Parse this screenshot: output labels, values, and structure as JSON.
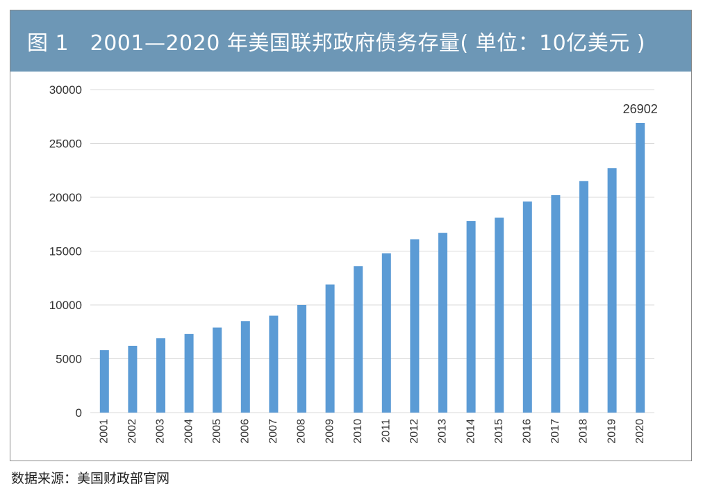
{
  "title": "图 1　2001—2020 年美国联邦政府债务存量( 单位：10亿美元 )",
  "source": "数据来源：美国财政部官网",
  "colors": {
    "bar": "#5b9bd5",
    "title_bg": "#6d97b6",
    "grid": "#d9d9d9"
  },
  "chart_data": {
    "type": "bar",
    "title": "2001—2020 年美国联邦政府债务存量( 单位：10亿美元 )",
    "xlabel": "",
    "ylabel": "",
    "categories": [
      "2001",
      "2002",
      "2003",
      "2004",
      "2005",
      "2006",
      "2007",
      "2008",
      "2009",
      "2010",
      "2011",
      "2012",
      "2013",
      "2014",
      "2015",
      "2016",
      "2017",
      "2018",
      "2019",
      "2020"
    ],
    "values": [
      5800,
      6200,
      6900,
      7300,
      7900,
      8500,
      9000,
      10000,
      11900,
      13600,
      14800,
      16100,
      16700,
      17800,
      18100,
      19600,
      20200,
      21500,
      22700,
      26902
    ],
    "yticks": [
      0,
      5000,
      10000,
      15000,
      20000,
      25000,
      30000
    ],
    "ylim": [
      0,
      30000
    ],
    "grid": true,
    "data_labels": [
      {
        "category": "2020",
        "text": "26902"
      }
    ]
  }
}
